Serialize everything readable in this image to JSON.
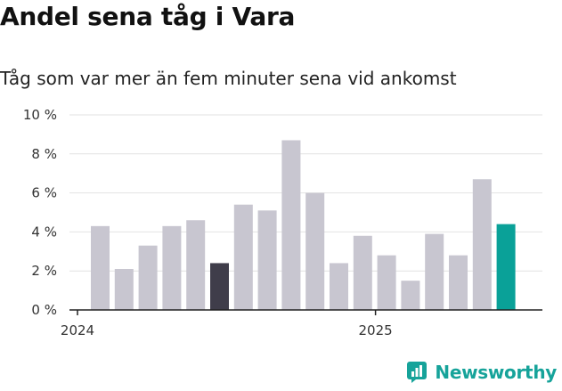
{
  "page": {
    "title": "Andel sena tåg i Vara",
    "subtitle": "Tåg som var mer än fem minuter sena vid ankomst",
    "brand": "Newsworthy"
  },
  "colors": {
    "bar_default": "#c8c6d0",
    "bar_highlight_dark": "#3f3d4a",
    "bar_highlight_latest": "#0aa198",
    "grid": "#e2e2e2",
    "axis": "#222222",
    "brand": "#16a39a"
  },
  "chart_data": {
    "type": "bar",
    "categories": [
      "2024-01",
      "2024-02",
      "2024-03",
      "2024-04",
      "2024-05",
      "2024-06",
      "2024-07",
      "2024-08",
      "2024-09",
      "2024-10",
      "2024-11",
      "2024-12",
      "2025-01",
      "2025-02",
      "2025-03",
      "2025-04",
      "2025-05",
      "2025-06"
    ],
    "values": [
      4.3,
      2.1,
      3.3,
      4.3,
      4.6,
      2.4,
      5.4,
      5.1,
      8.7,
      6.0,
      2.4,
      3.8,
      2.8,
      1.5,
      3.9,
      2.8,
      6.7,
      4.4
    ],
    "highlight": {
      "2024-06": "dark",
      "2025-06": "latest"
    },
    "ylim": [
      0,
      10
    ],
    "yticks": [
      0,
      2,
      4,
      6,
      8,
      10
    ],
    "ytick_labels": [
      "0 %",
      "2 %",
      "4 %",
      "6 %",
      "8 %",
      "10 %"
    ],
    "xticks": [
      {
        "label": "2024",
        "at": "2024-01"
      },
      {
        "label": "2025",
        "at": "2025-01"
      }
    ],
    "grid": true,
    "legend": "none",
    "title": "Andel sena tåg i Vara",
    "subtitle": "Tåg som var mer än fem minuter sena vid ankomst"
  }
}
